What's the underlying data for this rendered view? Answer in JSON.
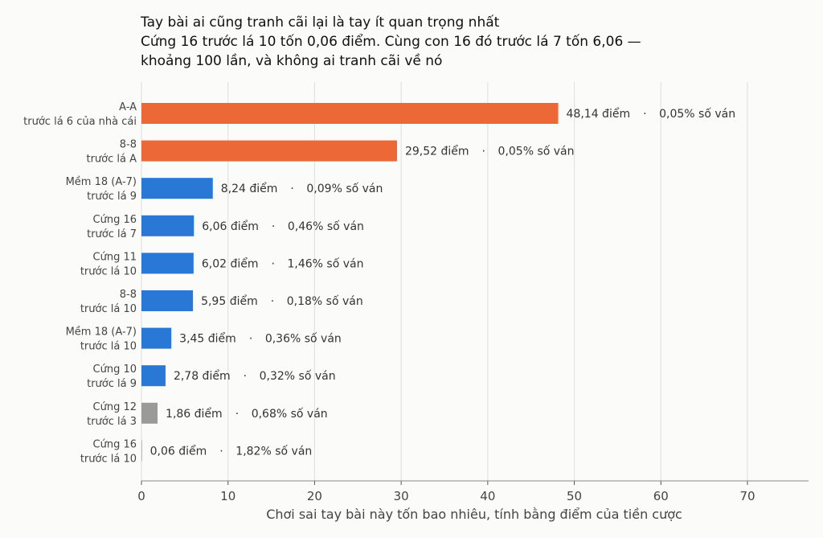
{
  "chart_data": {
    "type": "bar",
    "orientation": "horizontal",
    "title": "Tay bài ai cũng tranh cãi lại là tay ít quan trọng nhất",
    "subtitle": [
      "Cứng 16 trước lá 10 tốn 0,06 điểm. Cùng con 16 đó trước lá 7 tốn 6,06 —",
      "khoảng 100 lần, và không ai tranh cãi về nó"
    ],
    "xlabel": "Chơi sai tay bài này tốn bao nhiêu, tính bằng điểm của tiền cược",
    "ylabel": "",
    "xlim": [
      0,
      77
    ],
    "xticks": [
      "0",
      "10",
      "20",
      "30",
      "40",
      "50",
      "60",
      "70"
    ],
    "xtick_values": [
      0,
      10,
      20,
      30,
      40,
      50,
      60,
      70
    ],
    "grid": "vertical",
    "colors": {
      "orange": "#ec6836",
      "blue": "#2a78d6",
      "gray": "#9a9a9a"
    },
    "categories": [
      {
        "line1": "A-A",
        "line2": "trước lá 6 của nhà cái",
        "value": 48.14,
        "value_label": "48,14 điểm",
        "share_label": "0,05% số ván",
        "color": "orange"
      },
      {
        "line1": "8-8",
        "line2": "trước lá A",
        "value": 29.52,
        "value_label": "29,52 điểm",
        "share_label": "0,05% số ván",
        "color": "orange"
      },
      {
        "line1": "Mềm 18 (A-7)",
        "line2": "trước lá 9",
        "value": 8.24,
        "value_label": "8,24 điểm",
        "share_label": "0,09% số ván",
        "color": "blue"
      },
      {
        "line1": "Cứng 16",
        "line2": "trước lá 7",
        "value": 6.06,
        "value_label": "6,06 điểm",
        "share_label": "0,46% số ván",
        "color": "blue"
      },
      {
        "line1": "Cứng 11",
        "line2": "trước lá 10",
        "value": 6.02,
        "value_label": "6,02 điểm",
        "share_label": "1,46% số ván",
        "color": "blue"
      },
      {
        "line1": "8-8",
        "line2": "trước lá 10",
        "value": 5.95,
        "value_label": "5,95 điểm",
        "share_label": "0,18% số ván",
        "color": "blue"
      },
      {
        "line1": "Mềm 18 (A-7)",
        "line2": "trước lá 10",
        "value": 3.45,
        "value_label": "3,45 điểm",
        "share_label": "0,36% số ván",
        "color": "blue"
      },
      {
        "line1": "Cứng 10",
        "line2": "trước lá 9",
        "value": 2.78,
        "value_label": "2,78 điểm",
        "share_label": "0,32% số ván",
        "color": "blue"
      },
      {
        "line1": "Cứng 12",
        "line2": "trước lá 3",
        "value": 1.86,
        "value_label": "1,86 điểm",
        "share_label": "0,68% số ván",
        "color": "gray"
      },
      {
        "line1": "Cứng 16",
        "line2": "trước lá 10",
        "value": 0.06,
        "value_label": "0,06 điểm",
        "share_label": "1,82% số ván",
        "color": "gray"
      }
    ],
    "label_separator": "·"
  }
}
